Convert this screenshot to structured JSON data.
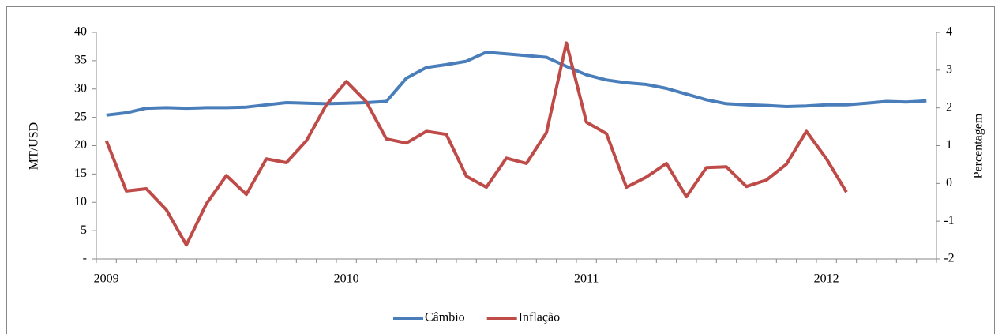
{
  "chart_data": {
    "type": "line",
    "categories": [
      "2009",
      null,
      null,
      null,
      null,
      null,
      null,
      null,
      null,
      null,
      null,
      null,
      "2010",
      null,
      null,
      null,
      null,
      null,
      null,
      null,
      null,
      null,
      null,
      null,
      "2011",
      null,
      null,
      null,
      null,
      null,
      null,
      null,
      null,
      null,
      null,
      null,
      "2012",
      null,
      null,
      null,
      null,
      null
    ],
    "ylabel": "MT/USD",
    "y2label": "Percentagem",
    "ylim": [
      0,
      40
    ],
    "yticks": [
      {
        "value": 0,
        "label": "-"
      },
      5,
      10,
      15,
      20,
      25,
      30,
      35,
      40
    ],
    "y2lim": [
      -2,
      4
    ],
    "y2ticks": [
      -2,
      -1,
      0,
      1,
      2,
      3,
      4
    ],
    "legend": "bottom",
    "series": [
      {
        "name": "Câmbio",
        "color": "#4a7ebb",
        "values": [
          25.4,
          25.8,
          26.6,
          26.7,
          26.6,
          26.7,
          26.7,
          26.8,
          27.2,
          27.6,
          27.5,
          27.4,
          27.5,
          27.6,
          27.8,
          31.9,
          33.8,
          34.3,
          34.9,
          36.5,
          36.2,
          35.9,
          35.6,
          34.0,
          32.5,
          31.6,
          31.1,
          30.8,
          30.1,
          29.1,
          28.1,
          27.4,
          27.2,
          27.1,
          26.9,
          27.0,
          27.2,
          27.2,
          27.5,
          27.8,
          27.7,
          27.9
        ]
      },
      {
        "name": "Inflação",
        "color": "#be4b48",
        "axis": "y2",
        "values": [
          1.13,
          -0.2,
          -0.14,
          -0.7,
          -1.63,
          -0.54,
          0.21,
          -0.29,
          0.65,
          0.55,
          1.13,
          2.08,
          2.7,
          2.16,
          1.18,
          1.07,
          1.38,
          1.3,
          0.19,
          -0.1,
          0.67,
          0.53,
          1.34,
          3.72,
          1.62,
          1.32,
          -0.1,
          0.17,
          0.53,
          -0.35,
          0.42,
          0.44,
          -0.08,
          0.09,
          0.51,
          1.38,
          0.65,
          -0.23,
          null,
          null,
          null,
          null
        ]
      }
    ]
  }
}
